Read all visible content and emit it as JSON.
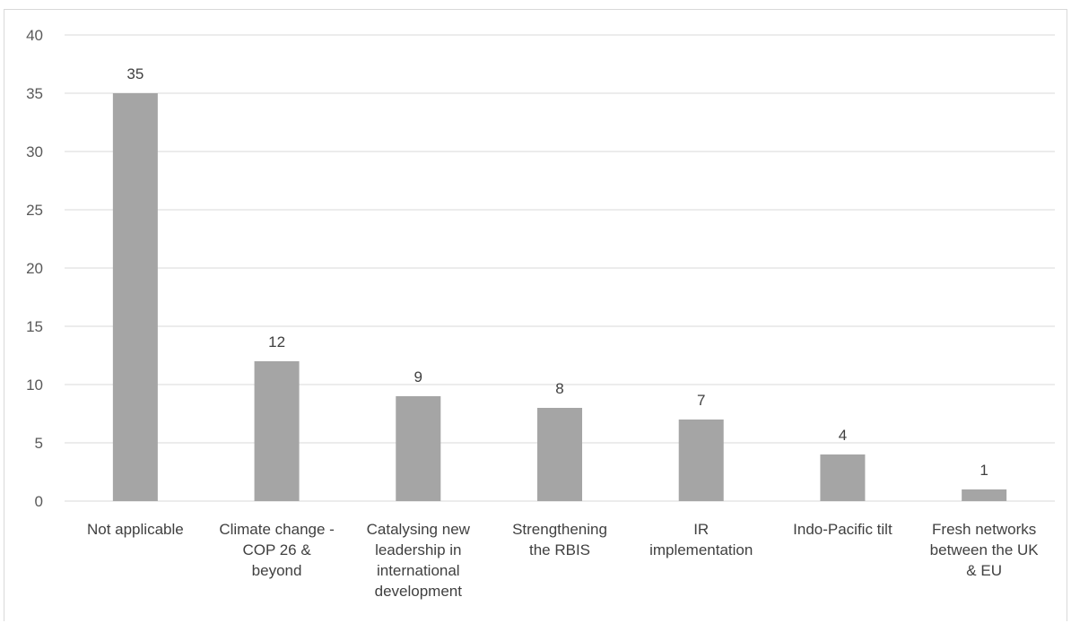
{
  "chart_data": {
    "type": "bar",
    "categories": [
      [
        "Not applicable"
      ],
      [
        "Climate change -",
        "COP 26 &",
        "beyond"
      ],
      [
        "Catalysing new",
        "leadership in",
        "international",
        "development"
      ],
      [
        "Strengthening",
        "the RBIS"
      ],
      [
        "IR",
        "implementation"
      ],
      [
        "Indo-Pacific tilt"
      ],
      [
        "Fresh networks",
        "between the UK",
        "& EU"
      ]
    ],
    "values": [
      35,
      12,
      9,
      8,
      7,
      4,
      1
    ],
    "data_labels": [
      "35",
      "12",
      "9",
      "8",
      "7",
      "4",
      "1"
    ],
    "ylim": [
      0,
      40
    ],
    "yticks": [
      0,
      5,
      10,
      15,
      20,
      25,
      30,
      35,
      40
    ],
    "grid": true,
    "bar_color": "#a5a5a5",
    "grid_color": "#d9d9d9",
    "title": "",
    "xlabel": "",
    "ylabel": ""
  }
}
